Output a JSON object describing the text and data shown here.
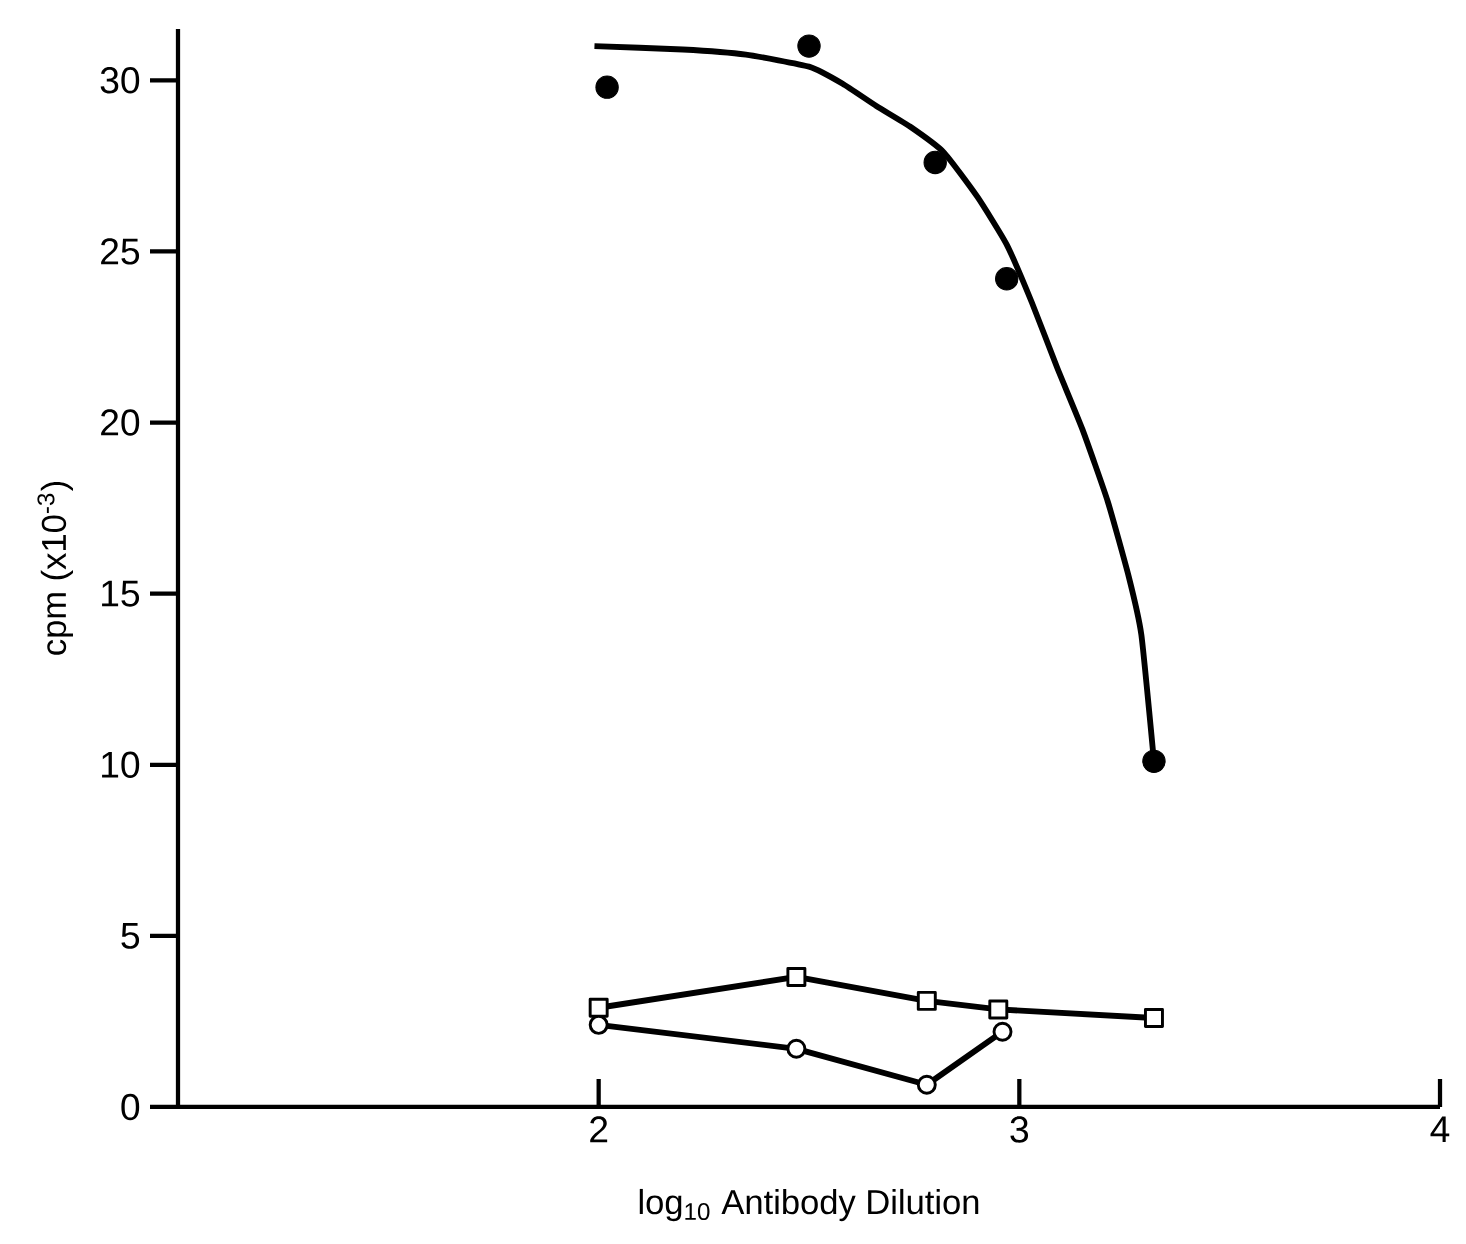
{
  "chart_data": {
    "type": "line",
    "xlabel": "log$_{10}$ Antibody Dilution",
    "ylabel": "cpm (x10$^{-3}$)",
    "xlim": [
      1,
      4
    ],
    "xticks": [
      2,
      3,
      4
    ],
    "ylim": [
      0,
      31.5
    ],
    "yticks": [
      0,
      5,
      10,
      15,
      20,
      25,
      30
    ],
    "series": [
      {
        "type": "scatter",
        "marker": "circle",
        "color": "#000000",
        "x": [
          2.02,
          2.5,
          2.8,
          2.97,
          3.32
        ],
        "values": [
          29.8,
          31.0,
          27.6,
          24.2,
          10.1
        ]
      },
      {
        "marker": "none",
        "color": "#000000",
        "x": [
          1.99,
          2.2,
          2.35,
          2.5,
          2.58,
          2.66,
          2.74,
          2.82,
          2.9,
          2.97,
          3.03,
          3.09,
          3.15,
          3.21,
          3.26,
          3.29,
          3.32
        ],
        "values": [
          31.0,
          30.9,
          30.75,
          30.4,
          29.9,
          29.25,
          28.65,
          27.9,
          26.6,
          25.2,
          23.5,
          21.6,
          19.8,
          17.7,
          15.5,
          13.8,
          10.1
        ]
      },
      {
        "marker": "square",
        "color": "#000000",
        "x": [
          2.0,
          2.47,
          2.78,
          2.95,
          3.32
        ],
        "values": [
          2.9,
          3.8,
          3.1,
          2.85,
          2.6
        ]
      },
      {
        "marker": "circle",
        "color": "#000000",
        "x": [
          2.0,
          2.47,
          2.78,
          2.96
        ],
        "values": [
          2.4,
          1.7,
          0.65,
          2.2
        ]
      }
    ]
  }
}
